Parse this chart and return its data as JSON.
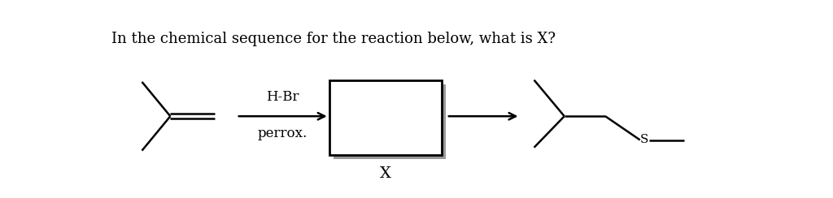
{
  "title": "In the chemical sequence for the reaction below, what is X?",
  "title_fontsize": 13,
  "background_color": "#ffffff",
  "text_color": "#000000",
  "reagent_line1": "H-Br",
  "reagent_line2": "perrox.",
  "box_label": "X",
  "lw": 1.8
}
